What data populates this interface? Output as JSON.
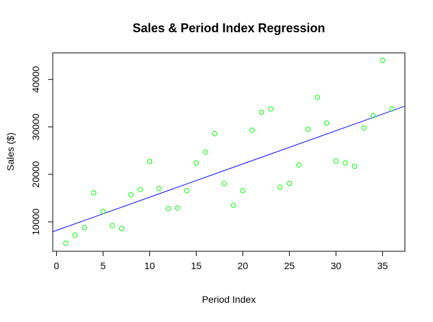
{
  "chart_data": {
    "type": "scatter",
    "title": "Sales & Period Index Regression",
    "xlabel": "Period Index",
    "ylabel": "Sales ($)",
    "xlim": [
      -0.4,
      37.4
    ],
    "ylim": [
      3800,
      45600
    ],
    "x_ticks": [
      0,
      5,
      10,
      15,
      20,
      25,
      30,
      35
    ],
    "y_ticks": [
      10000,
      20000,
      30000,
      40000
    ],
    "grid": false,
    "legend": "none",
    "point_color": "#00ff00",
    "line_color": "#0000ff",
    "points": [
      {
        "x": 1,
        "y": 5500
      },
      {
        "x": 2,
        "y": 7200
      },
      {
        "x": 3,
        "y": 8800
      },
      {
        "x": 4,
        "y": 16100
      },
      {
        "x": 5,
        "y": 12200
      },
      {
        "x": 6,
        "y": 9200
      },
      {
        "x": 7,
        "y": 8600
      },
      {
        "x": 8,
        "y": 15700
      },
      {
        "x": 9,
        "y": 16800
      },
      {
        "x": 10,
        "y": 22700
      },
      {
        "x": 11,
        "y": 17000
      },
      {
        "x": 12,
        "y": 12800
      },
      {
        "x": 13,
        "y": 12900
      },
      {
        "x": 14,
        "y": 16600
      },
      {
        "x": 15,
        "y": 22400
      },
      {
        "x": 16,
        "y": 24700
      },
      {
        "x": 17,
        "y": 28600
      },
      {
        "x": 18,
        "y": 18100
      },
      {
        "x": 19,
        "y": 13500
      },
      {
        "x": 20,
        "y": 16600
      },
      {
        "x": 21,
        "y": 29300
      },
      {
        "x": 22,
        "y": 33100
      },
      {
        "x": 23,
        "y": 33800
      },
      {
        "x": 24,
        "y": 17300
      },
      {
        "x": 25,
        "y": 18100
      },
      {
        "x": 26,
        "y": 22000
      },
      {
        "x": 27,
        "y": 29500
      },
      {
        "x": 28,
        "y": 36200
      },
      {
        "x": 29,
        "y": 30800
      },
      {
        "x": 30,
        "y": 22800
      },
      {
        "x": 31,
        "y": 22400
      },
      {
        "x": 32,
        "y": 21700
      },
      {
        "x": 33,
        "y": 29800
      },
      {
        "x": 34,
        "y": 32400
      },
      {
        "x": 35,
        "y": 44000
      },
      {
        "x": 36,
        "y": 33800
      }
    ],
    "regression_line": {
      "intercept": 8200,
      "slope": 700
    }
  }
}
